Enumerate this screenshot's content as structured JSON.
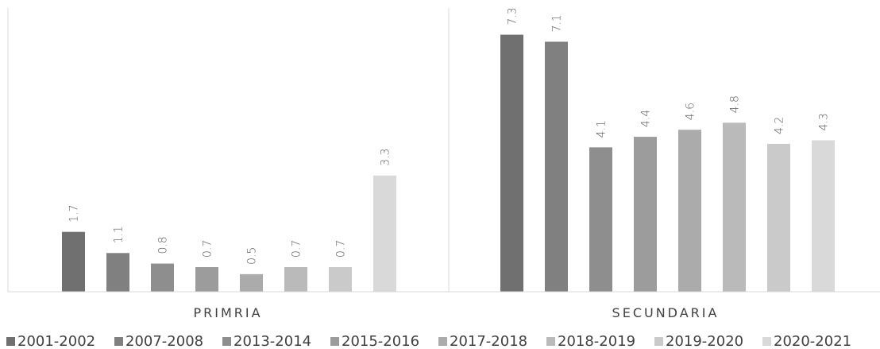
{
  "chart_data": {
    "type": "bar",
    "categories": [
      "PRIMRIA",
      "SECUNDARIA"
    ],
    "series": [
      {
        "name": "2001-2002",
        "values": [
          1.7,
          7.3
        ],
        "color": "#707070"
      },
      {
        "name": "2007-2008",
        "values": [
          1.1,
          7.1
        ],
        "color": "#808080"
      },
      {
        "name": "2013-2014",
        "values": [
          0.8,
          4.1
        ],
        "color": "#8e8e8e"
      },
      {
        "name": "2015-2016",
        "values": [
          0.7,
          4.4
        ],
        "color": "#9c9c9c"
      },
      {
        "name": "2017-2018",
        "values": [
          0.5,
          4.6
        ],
        "color": "#ababab"
      },
      {
        "name": "2018-2019",
        "values": [
          0.7,
          4.8
        ],
        "color": "#bababa"
      },
      {
        "name": "2019-2020",
        "values": [
          0.7,
          4.2
        ],
        "color": "#cacaca"
      },
      {
        "name": "2020-2021",
        "values": [
          3.3,
          4.3
        ],
        "color": "#d9d9d9"
      }
    ],
    "value_labels": [
      [
        "1.7",
        "7.3"
      ],
      [
        "1.1",
        "7.1"
      ],
      [
        "0.8",
        "4.1"
      ],
      [
        "0.7",
        "4.4"
      ],
      [
        "0.5",
        "4.6"
      ],
      [
        "0.7",
        "4.8"
      ],
      [
        "0.7",
        "4.2"
      ],
      [
        "3.3",
        "4.3"
      ]
    ],
    "ylim": [
      0,
      8
    ],
    "grid": false,
    "legend_position": "bottom",
    "title": "",
    "xlabel": "",
    "ylabel": ""
  }
}
